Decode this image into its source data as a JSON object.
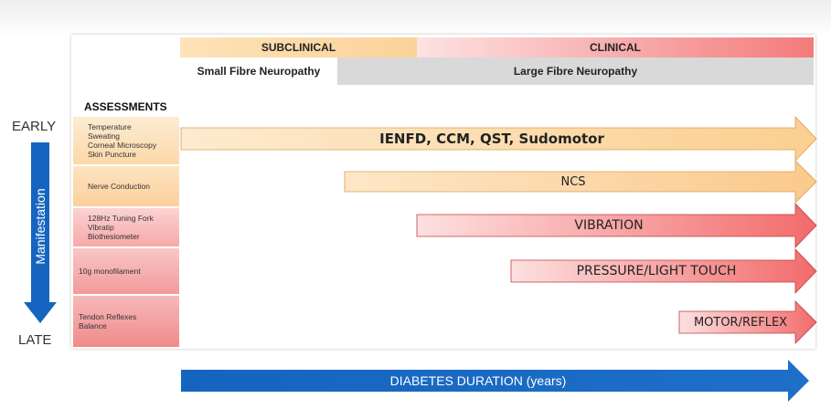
{
  "header": {
    "subclinical": "SUBCLINICAL",
    "clinical": "CLINICAL",
    "small_fibre": "Small Fibre Neuropathy",
    "large_fibre": "Large Fibre Neuropathy"
  },
  "assessments": {
    "title": "ASSESSMENTS",
    "rows": [
      {
        "lines": [
          "Temperature",
          "Sweating",
          "Corneal Microscopy",
          "Skin Puncture"
        ]
      },
      {
        "lines": [
          "Nerve Conduction"
        ]
      },
      {
        "lines": [
          "128Hz Tuning Fork",
          "Vibratip",
          "Biothesiometer"
        ]
      },
      {
        "lines": [
          "10g monofilament"
        ]
      },
      {
        "lines": [
          "Tendon Reflexes",
          "Balance"
        ]
      }
    ]
  },
  "axis": {
    "early": "EARLY",
    "late": "LATE",
    "manifestation": "Manifestation"
  },
  "arrows": [
    {
      "label": "IENFD, CCM, QST, Sudomotor"
    },
    {
      "label": "NCS"
    },
    {
      "label": "VIBRATION"
    },
    {
      "label": "PRESSURE/LIGHT TOUCH"
    },
    {
      "label": "MOTOR/REFLEX"
    }
  ],
  "duration": {
    "label": "DIABETES DURATION (years)"
  },
  "colors": {
    "orange": "#fbd29a",
    "red": "#f37b7b",
    "blue": "#1565c0",
    "grey": "#d9d9d9"
  }
}
